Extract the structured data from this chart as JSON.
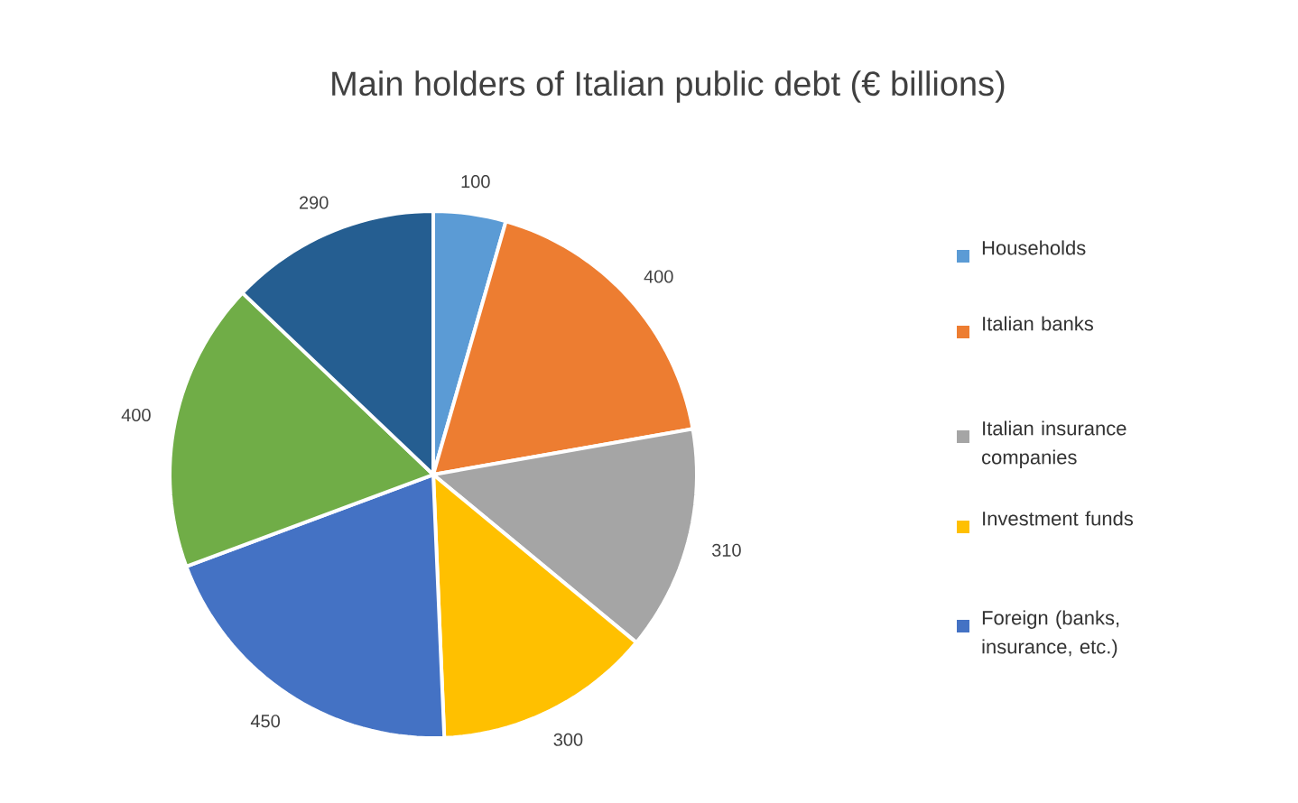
{
  "chart_data": {
    "type": "pie",
    "title": "Main holders of Italian public debt (€ billions)",
    "categories": [
      "Households",
      "Italian banks",
      "Italian insurance companies",
      "Investment funds",
      "Foreign (banks, insurance, etc.)",
      null,
      null
    ],
    "values": [
      100,
      400,
      310,
      300,
      450,
      400,
      290
    ],
    "colors": [
      "#5b9bd5",
      "#ed7d31",
      "#a5a5a5",
      "#ffc000",
      "#4472c4",
      "#70ad47",
      "#255e91"
    ],
    "data_labels": true,
    "legend": "right"
  }
}
